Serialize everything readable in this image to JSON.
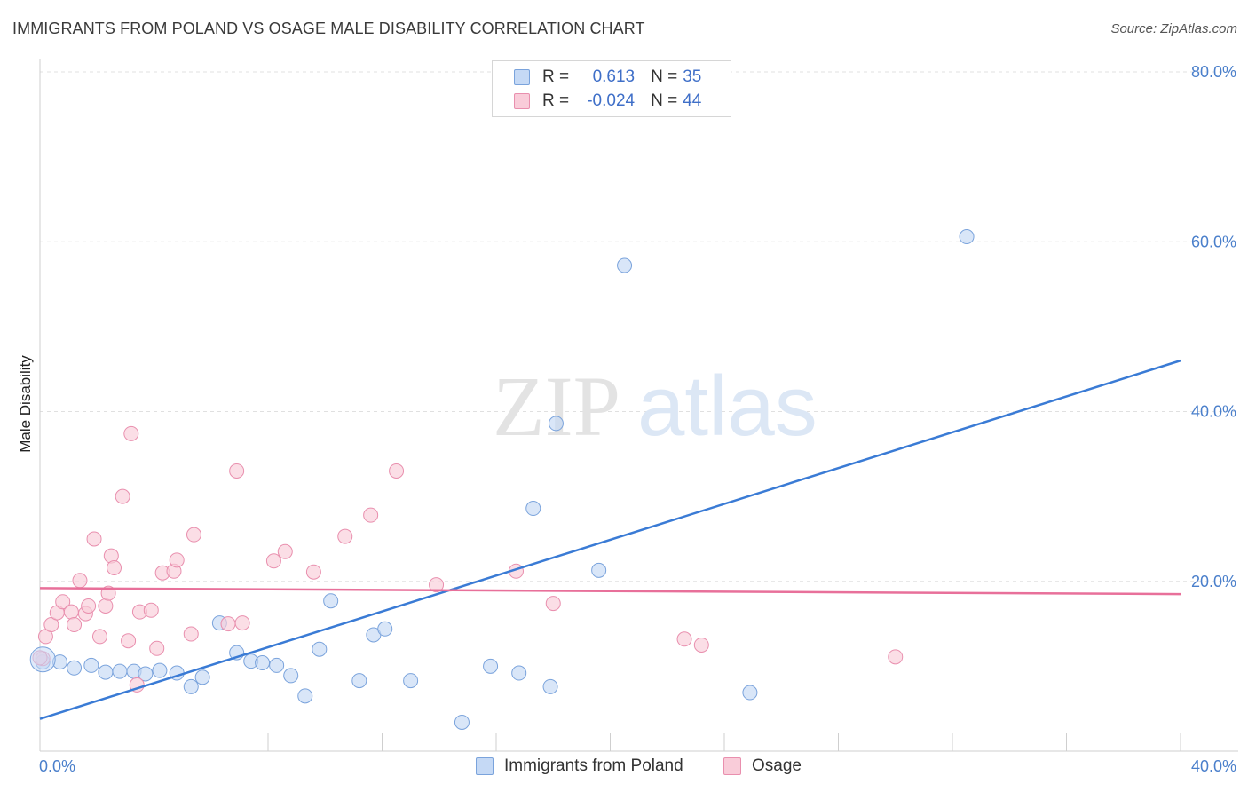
{
  "title": "IMMIGRANTS FROM POLAND VS OSAGE MALE DISABILITY CORRELATION CHART",
  "source": "Source: ZipAtlas.com",
  "watermark": {
    "zip": "ZIP",
    "atlas": "atlas"
  },
  "legend": {
    "rows": [
      {
        "r_label": "R = ",
        "r_value": "0.613",
        "n_label": "N = ",
        "n_value": "35",
        "color": "#a9c8f0"
      },
      {
        "r_label": "R = ",
        "r_value": "-0.024",
        "n_label": "N = ",
        "n_value": "44",
        "color": "#f5b8cb"
      }
    ]
  },
  "colors": {
    "blue": "#3a7bd5",
    "pink": "#e8709a",
    "blue_fill": "#c5d9f5",
    "pink_fill": "#f9ccd9",
    "tick_text": "#4a7fcb"
  },
  "chart_data": {
    "type": "scatter",
    "title": "IMMIGRANTS FROM POLAND VS OSAGE MALE DISABILITY CORRELATION CHART",
    "xlabel": "",
    "ylabel": "Male Disability",
    "xlim": [
      0,
      40
    ],
    "ylim": [
      0,
      80
    ],
    "x_ticks": [
      "0.0%",
      "40.0%"
    ],
    "y_ticks": [
      "20.0%",
      "40.0%",
      "60.0%",
      "80.0%"
    ],
    "grid": "horizontal dashed",
    "legend_position": "top-center and bottom",
    "series": [
      {
        "name": "Immigrants from Poland",
        "color": "#a9c8f0",
        "points": [
          [
            0.1,
            10.5
          ],
          [
            0.7,
            10.5
          ],
          [
            1.2,
            9.8
          ],
          [
            1.8,
            10.1
          ],
          [
            2.3,
            9.3
          ],
          [
            2.8,
            9.4
          ],
          [
            3.3,
            9.4
          ],
          [
            3.7,
            9.1
          ],
          [
            4.2,
            9.5
          ],
          [
            4.8,
            9.2
          ],
          [
            5.3,
            7.6
          ],
          [
            5.7,
            8.7
          ],
          [
            6.3,
            15.1
          ],
          [
            6.9,
            11.6
          ],
          [
            7.4,
            10.6
          ],
          [
            7.8,
            10.4
          ],
          [
            8.3,
            10.1
          ],
          [
            8.8,
            8.9
          ],
          [
            9.3,
            6.5
          ],
          [
            9.8,
            12.0
          ],
          [
            10.2,
            17.7
          ],
          [
            11.2,
            8.3
          ],
          [
            11.7,
            13.7
          ],
          [
            12.1,
            14.4
          ],
          [
            13.0,
            8.3
          ],
          [
            14.8,
            3.4
          ],
          [
            15.8,
            10.0
          ],
          [
            16.8,
            9.2
          ],
          [
            17.3,
            28.6
          ],
          [
            17.9,
            7.6
          ],
          [
            18.1,
            38.6
          ],
          [
            19.6,
            21.3
          ],
          [
            20.5,
            57.2
          ],
          [
            24.9,
            6.9
          ],
          [
            32.5,
            60.6
          ]
        ]
      },
      {
        "name": "Osage",
        "color": "#f5b8cb",
        "points": [
          [
            0.1,
            10.9
          ],
          [
            0.2,
            13.5
          ],
          [
            0.4,
            14.9
          ],
          [
            0.6,
            16.3
          ],
          [
            0.8,
            17.6
          ],
          [
            1.1,
            16.4
          ],
          [
            1.2,
            14.9
          ],
          [
            1.4,
            20.1
          ],
          [
            1.6,
            16.2
          ],
          [
            1.7,
            17.1
          ],
          [
            1.9,
            25.0
          ],
          [
            2.1,
            13.5
          ],
          [
            2.3,
            17.1
          ],
          [
            2.4,
            18.6
          ],
          [
            2.5,
            23.0
          ],
          [
            2.6,
            21.6
          ],
          [
            2.9,
            30.0
          ],
          [
            3.1,
            13.0
          ],
          [
            3.2,
            37.4
          ],
          [
            3.4,
            7.8
          ],
          [
            3.5,
            16.4
          ],
          [
            3.9,
            16.6
          ],
          [
            4.1,
            12.1
          ],
          [
            4.3,
            21.0
          ],
          [
            4.7,
            21.2
          ],
          [
            4.8,
            22.5
          ],
          [
            5.3,
            13.8
          ],
          [
            5.4,
            25.5
          ],
          [
            6.6,
            15.0
          ],
          [
            6.9,
            33.0
          ],
          [
            7.1,
            15.1
          ],
          [
            8.2,
            22.4
          ],
          [
            8.6,
            23.5
          ],
          [
            9.6,
            21.1
          ],
          [
            10.7,
            25.3
          ],
          [
            11.6,
            27.8
          ],
          [
            12.5,
            33.0
          ],
          [
            13.9,
            19.6
          ],
          [
            16.7,
            21.2
          ],
          [
            18.0,
            17.4
          ],
          [
            22.6,
            13.2
          ],
          [
            23.2,
            12.5
          ],
          [
            30.0,
            11.1
          ],
          [
            0.0,
            11.0
          ]
        ]
      }
    ],
    "trendlines": [
      {
        "series": "Immigrants from Poland",
        "x": [
          0,
          40
        ],
        "y": [
          3.8,
          46.0
        ]
      },
      {
        "series": "Osage",
        "x": [
          0,
          40
        ],
        "y": [
          19.2,
          18.5
        ]
      }
    ]
  }
}
